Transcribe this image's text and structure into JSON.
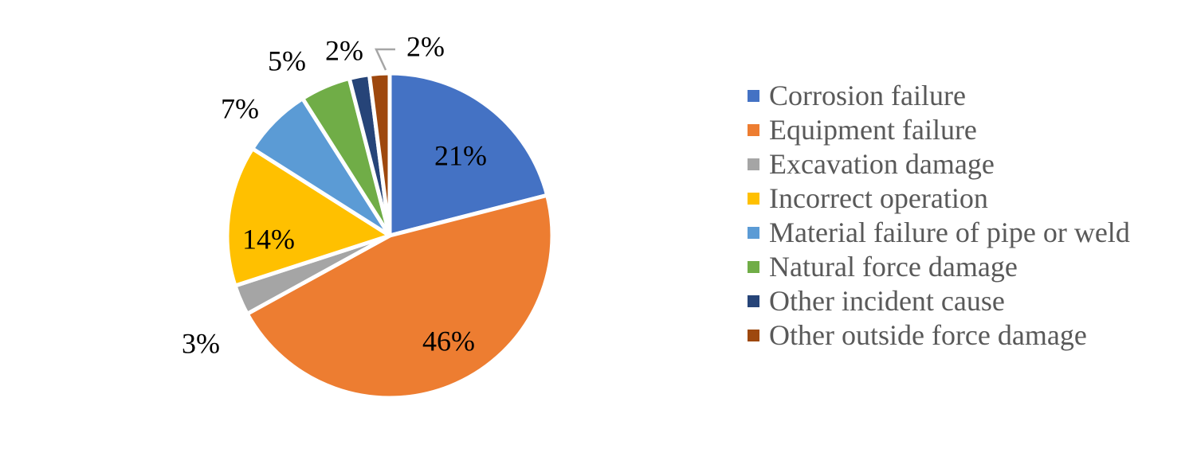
{
  "chart_data": {
    "type": "pie",
    "title": "",
    "categories": [
      "Corrosion failure",
      "Equipment failure",
      "Excavation damage",
      "Incorrect operation",
      "Material failure of pipe or weld",
      "Natural force damage",
      "Other incident cause",
      "Other outside force damage"
    ],
    "values": [
      21,
      46,
      3,
      14,
      7,
      5,
      2,
      2
    ],
    "labels": [
      "21%",
      "46%",
      "3%",
      "14%",
      "7%",
      "5%",
      "2%",
      "2%"
    ],
    "colors": [
      "#4472C4",
      "#ED7D31",
      "#A5A5A5",
      "#FFC000",
      "#5B9BD5",
      "#70AD47",
      "#264478",
      "#9E480E"
    ],
    "start_angle": "12 o'clock",
    "direction": "clockwise",
    "legend_position": "right"
  },
  "legend": {
    "items": [
      {
        "label": "Corrosion failure",
        "color": "#4472C4"
      },
      {
        "label": "Equipment failure",
        "color": "#ED7D31"
      },
      {
        "label": "Excavation damage",
        "color": "#A5A5A5"
      },
      {
        "label": "Incorrect operation",
        "color": "#FFC000"
      },
      {
        "label": "Material failure of pipe or weld",
        "color": "#5B9BD5"
      },
      {
        "label": "Natural force damage",
        "color": "#70AD47"
      },
      {
        "label": "Other incident cause",
        "color": "#264478"
      },
      {
        "label": "Other outside force damage",
        "color": "#9E480E"
      }
    ]
  }
}
